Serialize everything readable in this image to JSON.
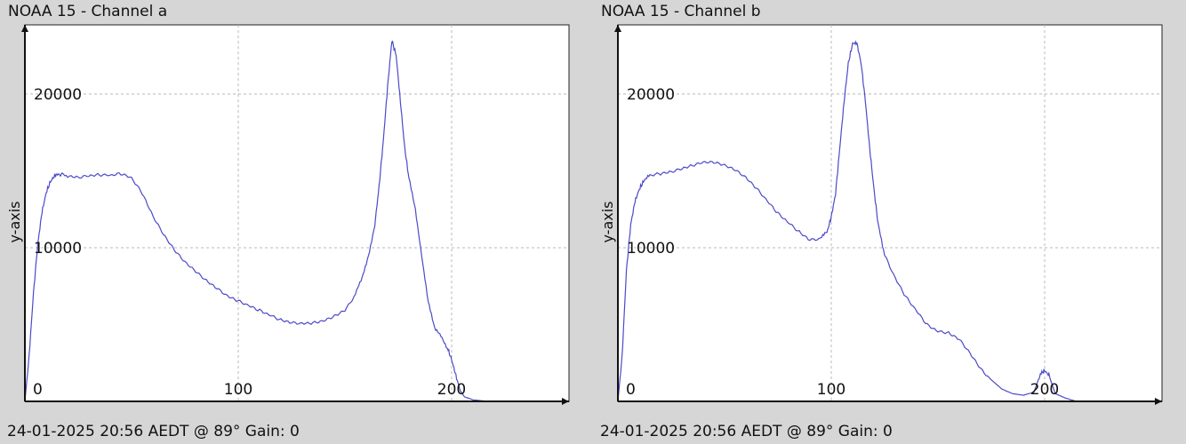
{
  "chart_data": [
    {
      "type": "line",
      "title": "NOAA 15 - Channel a",
      "xlabel": "",
      "ylabel": "y-axis",
      "footer": "24-01-2025 20:56 AEDT @ 89° Gain: 0",
      "xlim": [
        0,
        255
      ],
      "ylim": [
        0,
        24500
      ],
      "xticks": [
        0,
        100,
        200
      ],
      "yticks": [
        10000,
        20000
      ],
      "grid": true,
      "color": "#4b4bc8",
      "series": [
        {
          "x": [
            0,
            2,
            4,
            6,
            8,
            10,
            12,
            14,
            16,
            20,
            25,
            30,
            35,
            40,
            45,
            50,
            55,
            60,
            65,
            70,
            75,
            80,
            85,
            90,
            95,
            100,
            105,
            110,
            115,
            120,
            125,
            130,
            135,
            140,
            145,
            150,
            155,
            158,
            161,
            164,
            166,
            168,
            170,
            172,
            174,
            176,
            178,
            180,
            183,
            186,
            189,
            192,
            195,
            198,
            200,
            202,
            204,
            206,
            210,
            215,
            218
          ],
          "y": [
            0,
            3000,
            7000,
            10200,
            12300,
            13600,
            14300,
            14700,
            14800,
            14700,
            14600,
            14700,
            14750,
            14700,
            14800,
            14500,
            13500,
            12000,
            10800,
            9800,
            9000,
            8400,
            7800,
            7300,
            6800,
            6500,
            6200,
            5900,
            5600,
            5300,
            5150,
            5100,
            5150,
            5300,
            5600,
            6000,
            7000,
            8000,
            9500,
            11500,
            14000,
            17000,
            20500,
            23500,
            22500,
            19500,
            16500,
            14500,
            12500,
            9500,
            6500,
            4700,
            4300,
            3500,
            2700,
            1700,
            700,
            300,
            100,
            30,
            0
          ]
        }
      ]
    },
    {
      "type": "line",
      "title": "NOAA 15 - Channel b",
      "xlabel": "",
      "ylabel": "y-axis",
      "footer": "24-01-2025 20:56 AEDT @ 89° Gain: 0",
      "xlim": [
        0,
        255
      ],
      "ylim": [
        0,
        24500
      ],
      "xticks": [
        0,
        100,
        200
      ],
      "yticks": [
        10000,
        20000
      ],
      "grid": true,
      "color": "#4b4bc8",
      "series": [
        {
          "x": [
            0,
            2,
            4,
            6,
            8,
            10,
            12,
            15,
            20,
            25,
            30,
            35,
            40,
            45,
            50,
            55,
            60,
            65,
            70,
            75,
            80,
            85,
            90,
            95,
            98,
            100,
            102,
            104,
            106,
            108,
            110,
            112,
            114,
            116,
            118,
            120,
            122,
            125,
            130,
            135,
            140,
            145,
            150,
            155,
            160,
            165,
            170,
            175,
            180,
            185,
            190,
            195,
            198,
            200,
            202,
            205,
            210,
            215
          ],
          "y": [
            0,
            3000,
            8500,
            11500,
            13000,
            13800,
            14300,
            14700,
            14800,
            14900,
            15100,
            15300,
            15500,
            15500,
            15300,
            15000,
            14500,
            13800,
            13000,
            12200,
            11600,
            11000,
            10500,
            10600,
            11000,
            12000,
            13500,
            16500,
            19500,
            22000,
            23300,
            23300,
            22000,
            19500,
            16500,
            13800,
            11500,
            9500,
            8000,
            6800,
            5900,
            5000,
            4600,
            4500,
            4100,
            3200,
            2200,
            1400,
            800,
            500,
            400,
            600,
            1800,
            2000,
            1700,
            500,
            200,
            0
          ]
        }
      ]
    }
  ]
}
